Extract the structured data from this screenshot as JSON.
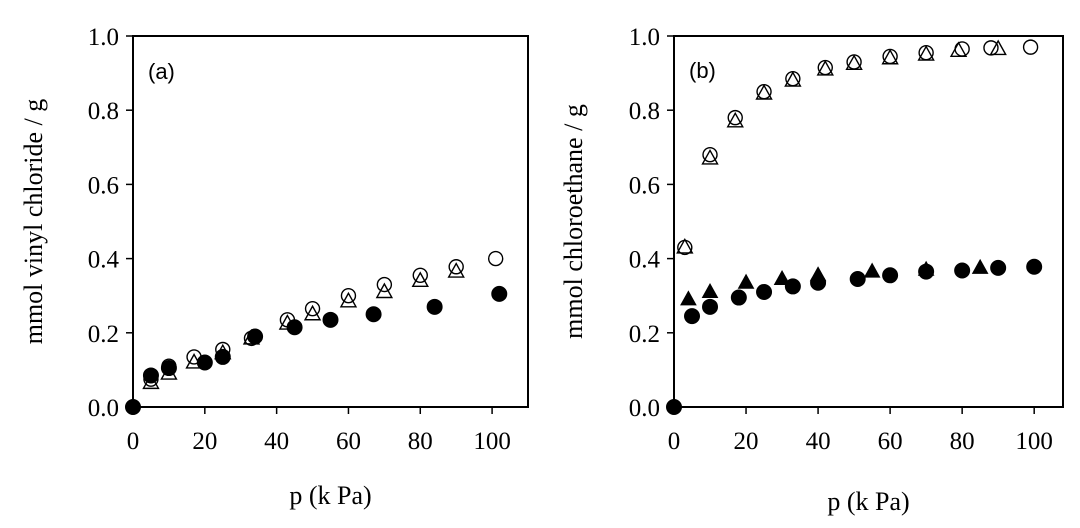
{
  "chart_data": [
    {
      "type": "scatter",
      "panel_label": "(a)",
      "xlabel": "p (k Pa)",
      "ylabel": "mmol vinyl chloride / g",
      "xlim": [
        0,
        110
      ],
      "ylim": [
        0,
        1.0
      ],
      "xticks": [
        0,
        20,
        40,
        60,
        80,
        100
      ],
      "yticks": [
        0.0,
        0.2,
        0.4,
        0.6,
        0.8,
        1.0
      ],
      "xtick_labels": [
        "0",
        "20",
        "40",
        "60",
        "80",
        "100"
      ],
      "ytick_labels": [
        "0.0",
        "0.2",
        "0.4",
        "0.6",
        "0.8",
        "1.0"
      ],
      "grid": false,
      "series": [
        {
          "marker": "open-circle",
          "x": [
            0,
            5,
            10,
            17,
            25,
            33,
            43,
            50,
            60,
            70,
            80,
            90,
            101
          ],
          "y": [
            0.0,
            0.075,
            0.11,
            0.135,
            0.155,
            0.185,
            0.235,
            0.265,
            0.3,
            0.33,
            0.355,
            0.378,
            0.4
          ]
        },
        {
          "marker": "open-triangle",
          "x": [
            5,
            10,
            17,
            25,
            33,
            43,
            50,
            60,
            70,
            80,
            90
          ],
          "y": [
            0.065,
            0.09,
            0.12,
            0.145,
            0.185,
            0.225,
            0.25,
            0.285,
            0.31,
            0.34,
            0.365
          ]
        },
        {
          "marker": "filled-circle",
          "x": [
            0,
            5,
            10,
            20,
            25,
            34,
            45,
            55,
            67,
            84,
            102
          ],
          "y": [
            0.0,
            0.085,
            0.105,
            0.12,
            0.135,
            0.19,
            0.215,
            0.235,
            0.25,
            0.27,
            0.305
          ]
        }
      ]
    },
    {
      "type": "scatter",
      "panel_label": "(b)",
      "xlabel": "p (k Pa)",
      "ylabel": "mmol chloroethane / g",
      "xlim": [
        0,
        108
      ],
      "ylim": [
        0,
        1.0
      ],
      "xticks": [
        0,
        20,
        40,
        60,
        80,
        100
      ],
      "yticks": [
        0.0,
        0.2,
        0.4,
        0.6,
        0.8,
        1.0
      ],
      "xtick_labels": [
        "0",
        "20",
        "40",
        "60",
        "80",
        "100"
      ],
      "ytick_labels": [
        "0.0",
        "0.2",
        "0.4",
        "0.6",
        "0.8",
        "1.0"
      ],
      "grid": false,
      "series": [
        {
          "marker": "open-circle",
          "x": [
            3,
            10,
            17,
            25,
            33,
            42,
            50,
            60,
            70,
            80,
            88,
            99
          ],
          "y": [
            0.43,
            0.68,
            0.78,
            0.85,
            0.885,
            0.915,
            0.93,
            0.945,
            0.955,
            0.965,
            0.968,
            0.97
          ]
        },
        {
          "marker": "open-triangle",
          "x": [
            3,
            10,
            17,
            25,
            33,
            42,
            50,
            60,
            70,
            79,
            90
          ],
          "y": [
            0.43,
            0.67,
            0.77,
            0.845,
            0.88,
            0.91,
            0.925,
            0.94,
            0.95,
            0.96,
            0.965
          ]
        },
        {
          "marker": "filled-triangle",
          "x": [
            4,
            10,
            20,
            30,
            40,
            55,
            70,
            85
          ],
          "y": [
            0.29,
            0.31,
            0.335,
            0.345,
            0.355,
            0.365,
            0.37,
            0.375
          ]
        },
        {
          "marker": "filled-circle",
          "x": [
            0,
            5,
            10,
            18,
            25,
            33,
            40,
            51,
            60,
            70,
            80,
            90,
            100
          ],
          "y": [
            0.0,
            0.245,
            0.27,
            0.295,
            0.31,
            0.325,
            0.335,
            0.345,
            0.355,
            0.365,
            0.368,
            0.375,
            0.378
          ]
        }
      ]
    }
  ]
}
